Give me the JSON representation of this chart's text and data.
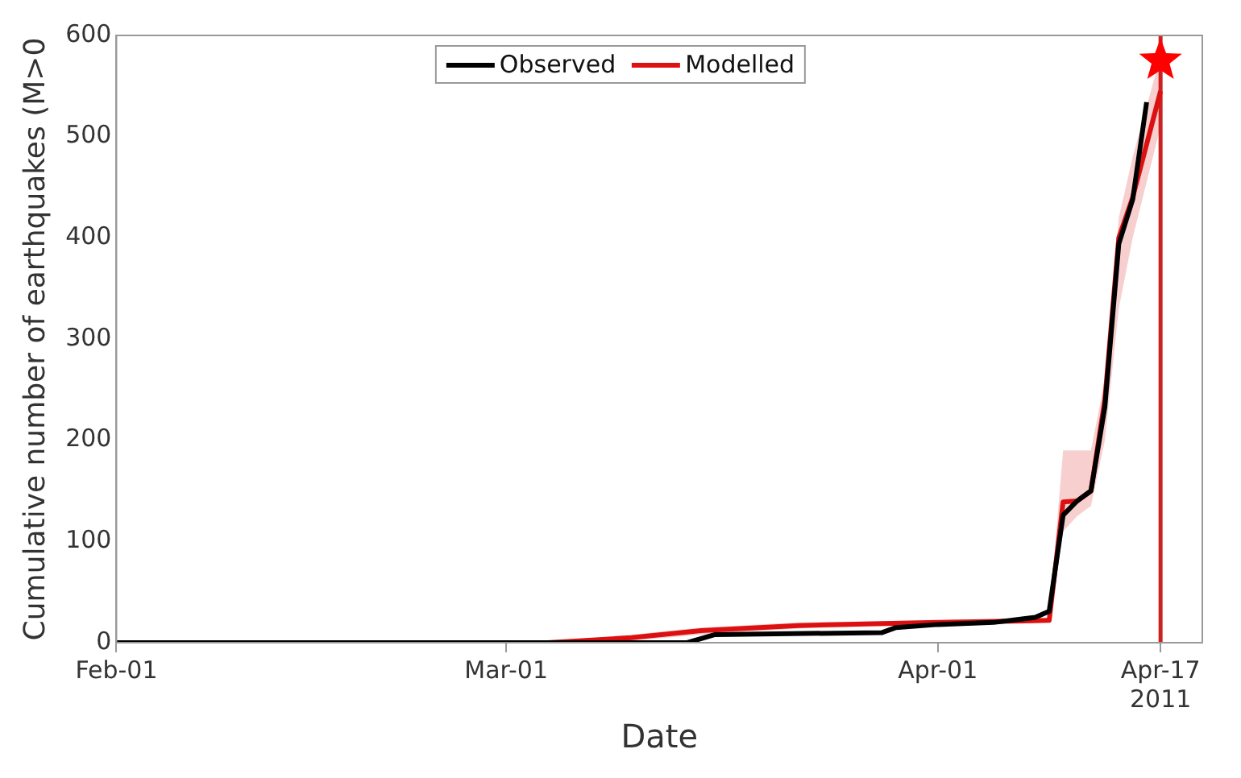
{
  "chart_data": {
    "type": "line",
    "xlabel": "Date",
    "ylabel": "Cumulative number of earthquakes (M>0",
    "xlim": [
      "2011-02-01",
      "2011-04-20"
    ],
    "xticks": [
      {
        "value": "2011-02-01",
        "label": "Feb-01"
      },
      {
        "value": "2011-03-01",
        "label": "Mar-01"
      },
      {
        "value": "2011-04-01",
        "label": "Apr-01"
      },
      {
        "value": "2011-04-17",
        "label": "Apr-17\n2011"
      }
    ],
    "ylim": [
      0,
      600
    ],
    "yticks": [
      0,
      100,
      200,
      300,
      400,
      500,
      600
    ],
    "grid": false,
    "legend": "top",
    "line_style": "solid",
    "marker": "none",
    "series": [
      {
        "name": "Observed",
        "color": "#000000",
        "x": [
          "2011-02-01",
          "2011-03-14",
          "2011-03-16",
          "2011-03-28",
          "2011-03-29",
          "2011-04-01",
          "2011-04-05",
          "2011-04-08",
          "2011-04-09",
          "2011-04-10",
          "2011-04-11",
          "2011-04-12",
          "2011-04-13",
          "2011-04-14",
          "2011-04-15",
          "2011-04-16"
        ],
        "values": [
          0,
          0,
          8,
          10,
          15,
          18,
          20,
          25,
          31,
          126,
          140,
          150,
          233,
          394,
          438,
          534
        ]
      },
      {
        "name": "Modelled",
        "color": "#dd1111",
        "x": [
          "2011-02-01",
          "2011-03-04",
          "2011-03-10",
          "2011-03-15",
          "2011-03-22",
          "2011-04-01",
          "2011-04-09",
          "2011-04-10",
          "2011-04-11",
          "2011-04-12",
          "2011-04-13",
          "2011-04-14",
          "2011-04-15",
          "2011-04-17"
        ],
        "values": [
          0,
          0,
          5,
          12,
          17,
          20,
          22,
          139,
          140,
          150,
          240,
          400,
          440,
          545
        ],
        "lower": [
          0,
          0,
          2,
          8,
          14,
          18,
          20,
          110,
          125,
          135,
          200,
          330,
          400,
          510
        ],
        "upper": [
          0,
          0,
          8,
          15,
          20,
          22,
          25,
          190,
          190,
          190,
          260,
          420,
          480,
          580
        ]
      },
      {
        "type": "scatter",
        "marker": "star",
        "color": "#ff0000",
        "x": [
          "2011-04-17"
        ],
        "values": [
          575
        ]
      }
    ],
    "ref_lines": [
      {
        "axis": "x",
        "value": "2011-04-17",
        "color": "#cc2222"
      }
    ]
  }
}
